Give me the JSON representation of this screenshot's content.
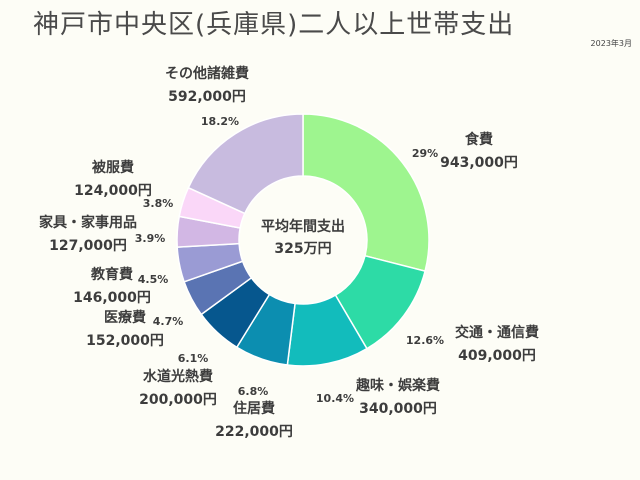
{
  "header": {
    "title": "神戸市中央区(兵庫県)二人以上世帯支出",
    "date": "2023年3月"
  },
  "center": {
    "line1": "平均年間支出",
    "line2": "325万円"
  },
  "chart_data": {
    "type": "pie",
    "donut": true,
    "title": "神戸市中央区(兵庫県)二人以上世帯支出",
    "center_text": [
      "平均年間支出",
      "325万円"
    ],
    "slices": [
      {
        "label": "食費",
        "value_text": "943,000円",
        "value": 943000,
        "percent_text": "29%",
        "color": "#9ef58f"
      },
      {
        "label": "交通・通信費",
        "value_text": "409,000円",
        "value": 409000,
        "percent_text": "12.6%",
        "color": "#2ddba6"
      },
      {
        "label": "趣味・娯楽費",
        "value_text": "340,000円",
        "value": 340000,
        "percent_text": "10.4%",
        "color": "#12bcbc"
      },
      {
        "label": "住居費",
        "value_text": "222,000円",
        "value": 222000,
        "percent_text": "6.8%",
        "color": "#0c8eb0"
      },
      {
        "label": "水道光熱費",
        "value_text": "200,000円",
        "value": 200000,
        "percent_text": "6.1%",
        "color": "#06578e"
      },
      {
        "label": "医療費",
        "value_text": "152,000円",
        "value": 152000,
        "percent_text": "4.7%",
        "color": "#5a74b3"
      },
      {
        "label": "教育費",
        "value_text": "146,000円",
        "value": 146000,
        "percent_text": "4.5%",
        "color": "#9a9bd4"
      },
      {
        "label": "家具・家事用品",
        "value_text": "127,000円",
        "value": 127000,
        "percent_text": "3.9%",
        "color": "#d2b7e4"
      },
      {
        "label": "被服費",
        "value_text": "124,000円",
        "value": 124000,
        "percent_text": "3.8%",
        "color": "#fad7f8"
      },
      {
        "label": "その他諸雑費",
        "value_text": "592,000円",
        "value": 592000,
        "percent_text": "18.2%",
        "color": "#c8bbdf"
      }
    ]
  }
}
